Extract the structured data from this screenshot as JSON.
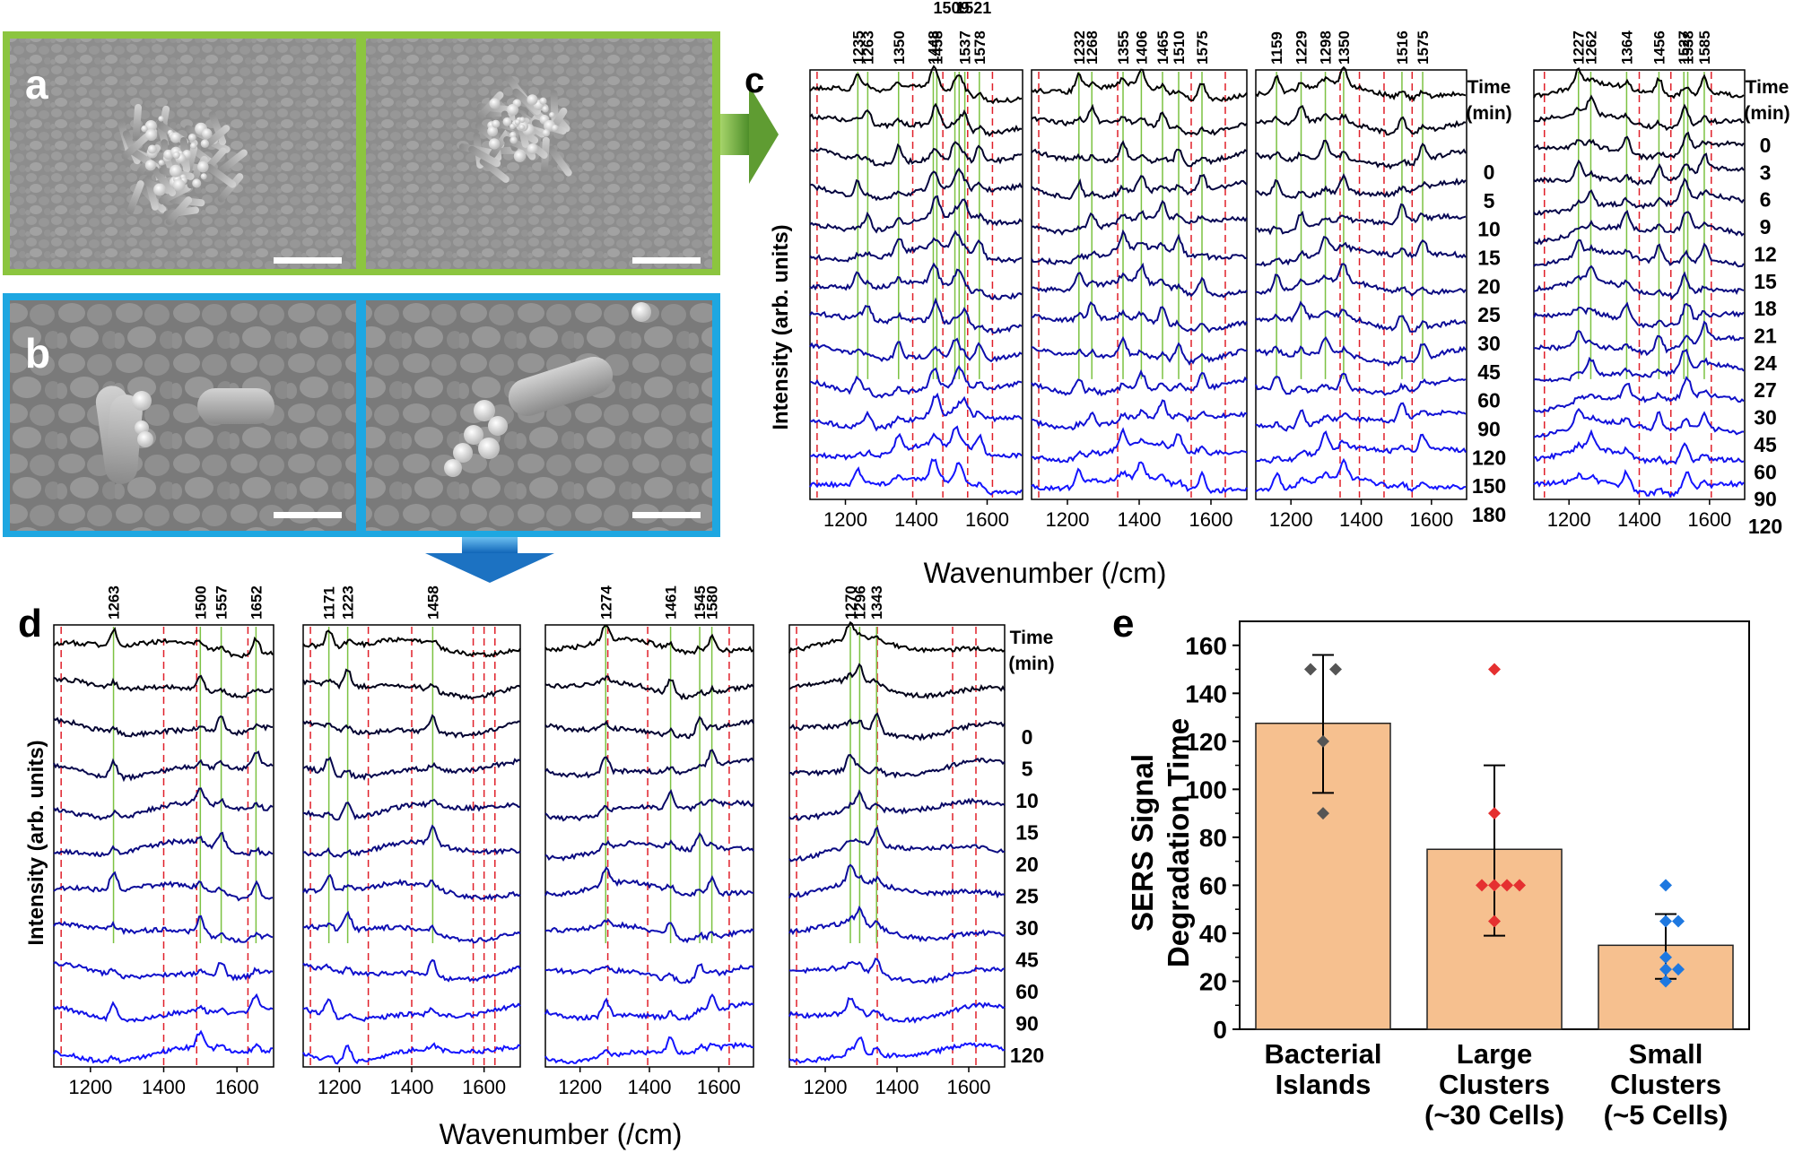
{
  "colors": {
    "panel_a_border": "#8cc53f",
    "panel_b_border": "#1ea7e1",
    "sem_background": "#8e8e8e",
    "reference_line": "#e0202a",
    "peak_line": "#7cc242",
    "trace_start": "#000000",
    "trace_end": "#1414ff",
    "bar_fill": "#f6c08f",
    "bar_edge": "#222222",
    "islands_points": "#555555",
    "large_points": "#e53030",
    "small_points": "#1e78e0"
  },
  "icons": [
    "arrow-right-icon",
    "arrow-down-icon",
    "scale-bar-icon"
  ],
  "panel_labels": {
    "a": "a",
    "b": "b",
    "c": "c",
    "d": "d",
    "e": "e"
  },
  "panel_c": {
    "ylabel": "Intensity (arb. units)",
    "xlabel": "Wavenumber (/cm)",
    "time_header": [
      "Time",
      "(min)"
    ],
    "xticks": [
      "1200",
      "1400",
      "1600"
    ],
    "subpanels": [
      {
        "times": [
          "0",
          "5",
          "10",
          "15",
          "20",
          "25",
          "30",
          "45",
          "60",
          "90",
          "120",
          "150",
          "180"
        ],
        "peaks": [
          "1235",
          "1263",
          "1350",
          "1448",
          "1458",
          "1537",
          "1578"
        ],
        "upper_peaks": [
          "1509",
          "1521"
        ],
        "peak_positions": [
          1235,
          1263,
          1350,
          1448,
          1458,
          1509,
          1521,
          1537,
          1578
        ],
        "red_lines": [
          1120,
          1390,
          1475,
          1545,
          1615
        ]
      },
      {
        "times": [],
        "peaks": [
          "1232",
          "1268",
          "1355",
          "1406",
          "1465",
          "1510",
          "1575"
        ],
        "peak_positions": [
          1232,
          1268,
          1355,
          1406,
          1465,
          1510,
          1575
        ],
        "red_lines": [
          1120,
          1340,
          1545,
          1640
        ]
      },
      {
        "times": [],
        "peaks": [
          "1159",
          "1229",
          "1298",
          "1350",
          "1516",
          "1575"
        ],
        "peak_positions": [
          1159,
          1229,
          1298,
          1350,
          1516,
          1575
        ],
        "red_lines": [
          1340,
          1395,
          1465,
          1545
        ]
      },
      {
        "times": [
          "0",
          "3",
          "6",
          "9",
          "12",
          "15",
          "18",
          "21",
          "24",
          "27",
          "30",
          "45",
          "60",
          "90",
          "120"
        ],
        "peaks": [
          "1227",
          "1262",
          "1364",
          "1456",
          "1527",
          "1538",
          "1585"
        ],
        "peak_positions": [
          1227,
          1262,
          1364,
          1456,
          1527,
          1538,
          1585
        ],
        "red_lines": [
          1130,
          1400,
          1490,
          1605
        ]
      }
    ]
  },
  "panel_d": {
    "ylabel": "Intensity (arb. units)",
    "xlabel": "Wavenumber (/cm)",
    "time_header": [
      "Time",
      "(min)"
    ],
    "times": [
      "0",
      "5",
      "10",
      "15",
      "20",
      "25",
      "30",
      "45",
      "60",
      "90",
      "120"
    ],
    "xticks": [
      "1200",
      "1400",
      "1600"
    ],
    "subpanels": [
      {
        "peaks": [
          "1263",
          "1500",
          "1557",
          "1652"
        ],
        "peak_positions": [
          1263,
          1500,
          1557,
          1652
        ],
        "red_lines": [
          1120,
          1400,
          1490,
          1630
        ]
      },
      {
        "peaks": [
          "1171",
          "1223",
          "1458"
        ],
        "peak_positions": [
          1171,
          1223,
          1458
        ],
        "red_lines": [
          1120,
          1280,
          1400,
          1570,
          1600,
          1630
        ]
      },
      {
        "peaks": [
          "1274",
          "1461",
          "1545",
          "1580"
        ],
        "peak_positions": [
          1274,
          1461,
          1545,
          1580
        ],
        "red_lines": [
          1280,
          1395,
          1630
        ]
      },
      {
        "peaks": [
          "1270",
          "1296",
          "1343"
        ],
        "peak_positions": [
          1270,
          1296,
          1343
        ],
        "red_lines": [
          1120,
          1345,
          1555,
          1620
        ]
      }
    ]
  },
  "chart_data": {
    "type": "bar",
    "title": "",
    "xlabel": "",
    "ylabel": [
      "SERS Signal",
      "Degradation Time"
    ],
    "ylim": [
      0,
      170
    ],
    "yticks": [
      "0",
      "20",
      "40",
      "60",
      "80",
      "100",
      "120",
      "140",
      "160"
    ],
    "categories": [
      [
        "Bacterial",
        "Islands"
      ],
      [
        "Large",
        "Clusters",
        "(~30 Cells)"
      ],
      [
        "Small",
        "Clusters",
        "(~5 Cells)"
      ]
    ],
    "values": [
      127.5,
      75,
      35
    ],
    "error_bars": [
      [
        98.5,
        156
      ],
      [
        39,
        110
      ],
      [
        21,
        48
      ]
    ],
    "points": [
      [
        150,
        150,
        120,
        90
      ],
      [
        150,
        90,
        60,
        60,
        60,
        60,
        45
      ],
      [
        60,
        45,
        45,
        30,
        25,
        25,
        20
      ]
    ],
    "grid": false
  }
}
